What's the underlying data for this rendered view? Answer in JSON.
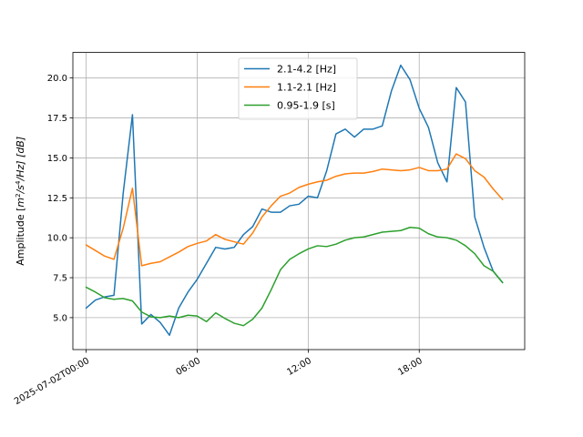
{
  "chart_data": {
    "type": "line",
    "title": "",
    "xlabel": "",
    "ylabel": "Amplitude [m²/s⁴/Hz] [dB]",
    "ylabel_parts": {
      "pre": "Amplitude [",
      "m": "m",
      "sup2": "2",
      "mid": "/s",
      "sup4": "4",
      "post": "/Hz] [dB]"
    },
    "grid": true,
    "legend_position": "upper center",
    "x_unit": "hours",
    "xlim": [
      -0.72,
      23.7
    ],
    "ylim": [
      3.0,
      21.6
    ],
    "xticks": [
      {
        "value": 0,
        "label": "2025-07-02T00:00"
      },
      {
        "value": 6,
        "label": "06:00"
      },
      {
        "value": 12,
        "label": "12:00"
      },
      {
        "value": 18,
        "label": "18:00"
      }
    ],
    "yticks": [
      {
        "value": 5.0,
        "label": "5.0"
      },
      {
        "value": 7.5,
        "label": "7.5"
      },
      {
        "value": 10.0,
        "label": "10.0"
      },
      {
        "value": 12.5,
        "label": "12.5"
      },
      {
        "value": 15.0,
        "label": "15.0"
      },
      {
        "value": 17.5,
        "label": "17.5"
      },
      {
        "value": 20.0,
        "label": "20.0"
      }
    ],
    "x": [
      0,
      0.5,
      1,
      1.5,
      2,
      2.5,
      3,
      3.5,
      4,
      4.5,
      5,
      5.5,
      6,
      6.5,
      7,
      7.5,
      8,
      8.5,
      9,
      9.5,
      10,
      10.5,
      11,
      11.5,
      12,
      12.5,
      13,
      13.5,
      14,
      14.5,
      15,
      15.5,
      16,
      16.5,
      17,
      17.5,
      18,
      18.5,
      19,
      19.5,
      20,
      20.5,
      21,
      21.5,
      22,
      22.5
    ],
    "series": [
      {
        "name": "2.1-4.2 [Hz]",
        "color": "#1f77b4",
        "values": [
          5.6,
          6.1,
          6.3,
          6.4,
          12.8,
          17.7,
          4.6,
          5.2,
          4.7,
          3.9,
          5.6,
          6.6,
          7.4,
          8.4,
          9.4,
          9.3,
          9.4,
          10.2,
          10.7,
          11.8,
          11.6,
          11.6,
          12.0,
          12.1,
          12.6,
          12.5,
          14.2,
          16.5,
          16.8,
          16.3,
          16.8,
          16.8,
          17.0,
          19.2,
          20.8,
          19.9,
          18.1,
          16.9,
          14.7,
          13.5,
          19.4,
          18.5,
          11.3,
          9.4,
          7.9,
          7.2
        ]
      },
      {
        "name": "1.1-2.1 [Hz]",
        "color": "#ff7f0e",
        "values": [
          9.55,
          9.2,
          8.85,
          8.65,
          10.6,
          13.1,
          8.25,
          8.4,
          8.5,
          8.8,
          9.1,
          9.45,
          9.65,
          9.8,
          10.2,
          9.9,
          9.75,
          9.6,
          10.3,
          11.3,
          12.0,
          12.6,
          12.8,
          13.15,
          13.35,
          13.5,
          13.6,
          13.85,
          14.0,
          14.05,
          14.05,
          14.15,
          14.3,
          14.25,
          14.2,
          14.25,
          14.4,
          14.2,
          14.2,
          14.3,
          15.25,
          14.95,
          14.2,
          13.8,
          13.05,
          12.4
        ]
      },
      {
        "name": "0.95-1.9 [s]",
        "color": "#2ca02c",
        "values": [
          6.9,
          6.6,
          6.25,
          6.15,
          6.2,
          6.05,
          5.35,
          5.05,
          5.0,
          5.1,
          5.0,
          5.15,
          5.1,
          4.75,
          5.3,
          4.95,
          4.65,
          4.5,
          4.9,
          5.6,
          6.75,
          8.0,
          8.65,
          9.0,
          9.3,
          9.5,
          9.45,
          9.6,
          9.85,
          10.0,
          10.05,
          10.2,
          10.35,
          10.4,
          10.45,
          10.65,
          10.6,
          10.25,
          10.05,
          10.0,
          9.85,
          9.5,
          9.0,
          8.25,
          7.9,
          7.2
        ]
      }
    ]
  }
}
